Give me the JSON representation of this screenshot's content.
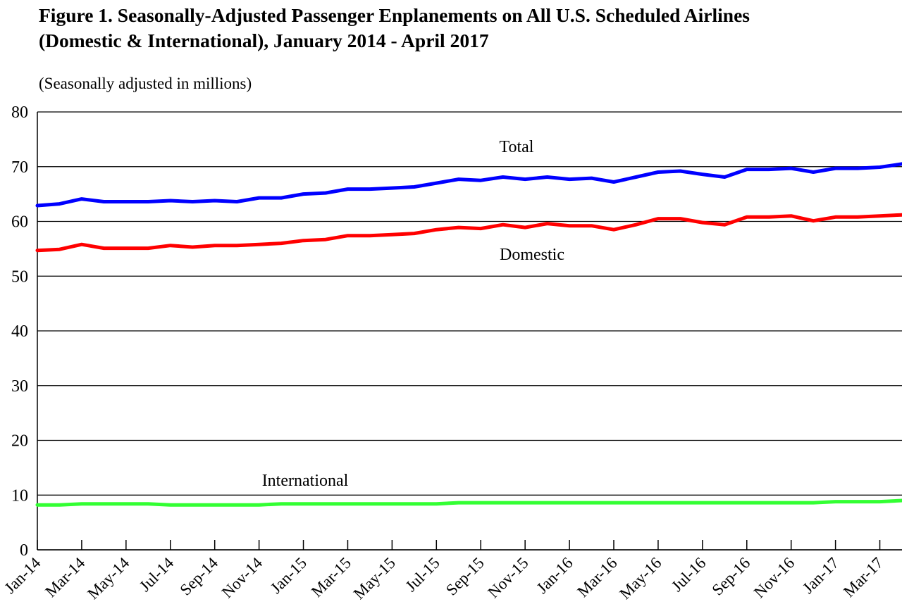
{
  "title_line1": "Figure 1. Seasonally-Adjusted Passenger Enplanements on All U.S. Scheduled Airlines",
  "title_line2": "(Domestic & International), January 2014 - April 2017",
  "units_label": "(Seasonally adjusted in millions)",
  "chart_data": {
    "type": "line",
    "title": "Figure 1. Seasonally-Adjusted Passenger Enplanements on All U.S. Scheduled Airlines (Domestic & International), January 2014 - April 2017",
    "ylabel": "(Seasonally adjusted in millions)",
    "xlabel": "",
    "ylim": [
      0,
      80
    ],
    "yticks": [
      0,
      10,
      20,
      30,
      40,
      50,
      60,
      70,
      80
    ],
    "grid": true,
    "categories": [
      "Jan-14",
      "Feb-14",
      "Mar-14",
      "Apr-14",
      "May-14",
      "Jun-14",
      "Jul-14",
      "Aug-14",
      "Sep-14",
      "Oct-14",
      "Nov-14",
      "Dec-14",
      "Jan-15",
      "Feb-15",
      "Mar-15",
      "Apr-15",
      "May-15",
      "Jun-15",
      "Jul-15",
      "Aug-15",
      "Sep-15",
      "Oct-15",
      "Nov-15",
      "Dec-15",
      "Jan-16",
      "Feb-16",
      "Mar-16",
      "Apr-16",
      "May-16",
      "Jun-16",
      "Jul-16",
      "Aug-16",
      "Sep-16",
      "Oct-16",
      "Nov-16",
      "Dec-16",
      "Jan-17",
      "Feb-17",
      "Mar-17",
      "Apr-17"
    ],
    "xtick_labels": [
      "Jan-14",
      "Mar-14",
      "May-14",
      "Jul-14",
      "Sep-14",
      "Nov-14",
      "Jan-15",
      "Mar-15",
      "May-15",
      "Jul-15",
      "Sep-15",
      "Nov-15",
      "Jan-16",
      "Mar-16",
      "May-16",
      "Jul-16",
      "Sep-16",
      "Nov-16",
      "Jan-17",
      "Mar-17"
    ],
    "series": [
      {
        "name": "Total",
        "color": "#0000ff",
        "values": [
          62.9,
          63.2,
          64.1,
          63.6,
          63.6,
          63.6,
          63.8,
          63.6,
          63.8,
          63.6,
          64.3,
          64.3,
          65.0,
          65.2,
          65.9,
          65.9,
          66.1,
          66.3,
          67.0,
          67.7,
          67.5,
          68.1,
          67.7,
          68.1,
          67.7,
          67.9,
          67.2,
          68.1,
          69.0,
          69.2,
          68.6,
          68.1,
          69.5,
          69.5,
          69.7,
          69.0,
          69.7,
          69.7,
          69.9,
          70.5
        ]
      },
      {
        "name": "Domestic",
        "color": "#ff0000",
        "values": [
          54.7,
          54.9,
          55.8,
          55.1,
          55.1,
          55.1,
          55.6,
          55.3,
          55.6,
          55.6,
          55.8,
          56.0,
          56.5,
          56.7,
          57.4,
          57.4,
          57.6,
          57.8,
          58.5,
          58.9,
          58.7,
          59.4,
          58.9,
          59.6,
          59.2,
          59.2,
          58.5,
          59.4,
          60.5,
          60.5,
          59.8,
          59.4,
          60.8,
          60.8,
          61.0,
          60.1,
          60.8,
          60.8,
          61.0,
          61.2
        ]
      },
      {
        "name": "International",
        "color": "#33ff33",
        "values": [
          8.2,
          8.2,
          8.4,
          8.4,
          8.4,
          8.4,
          8.2,
          8.2,
          8.2,
          8.2,
          8.2,
          8.4,
          8.4,
          8.4,
          8.4,
          8.4,
          8.4,
          8.4,
          8.4,
          8.6,
          8.6,
          8.6,
          8.6,
          8.6,
          8.6,
          8.6,
          8.6,
          8.6,
          8.6,
          8.6,
          8.6,
          8.6,
          8.6,
          8.6,
          8.6,
          8.6,
          8.8,
          8.8,
          8.8,
          9.0
        ]
      }
    ]
  }
}
